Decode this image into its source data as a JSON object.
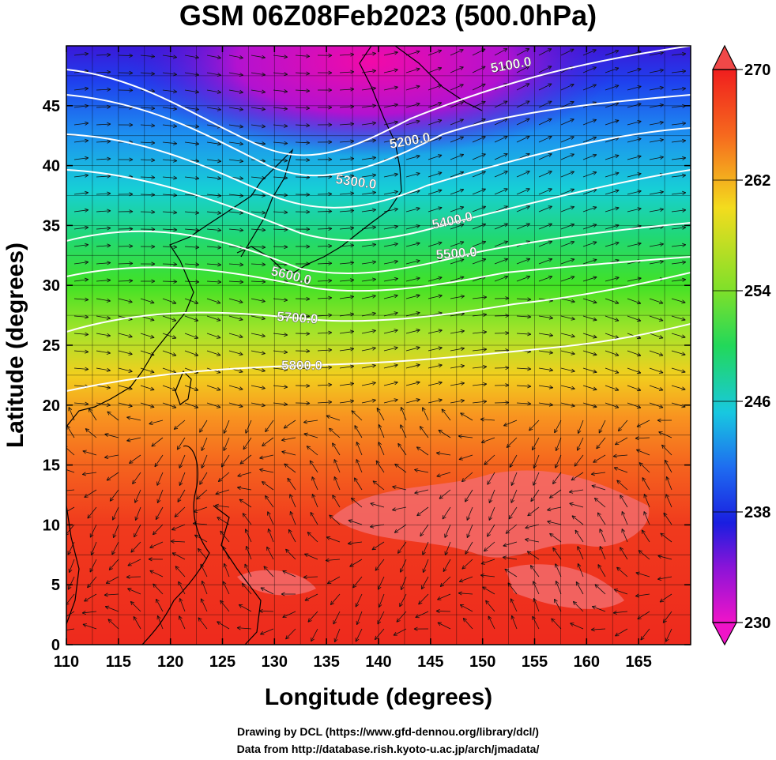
{
  "title": "GSM 06Z08Feb2023 (500.0hPa)",
  "xlabel": "Longitude (degrees)",
  "ylabel": "Latitude  (degrees)",
  "credits": [
    "Drawing by DCL (https://www.gfd-dennou.org/library/dcl/)",
    "Data from http://database.rish.kyoto-u.ac.jp/arch/jmadata/"
  ],
  "map_data": {
    "lon_range": [
      110,
      170
    ],
    "lat_range": [
      0,
      50
    ],
    "x_ticks": [
      "110",
      "115",
      "120",
      "125",
      "130",
      "135",
      "140",
      "145",
      "150",
      "155",
      "160",
      "165"
    ],
    "y_ticks": [
      "0",
      "5",
      "10",
      "15",
      "20",
      "25",
      "30",
      "35",
      "40",
      "45"
    ],
    "contour_labels": [
      "5100.0",
      "5200.0",
      "5300.0",
      "5400.0",
      "5500.0",
      "5600.0",
      "5700.0",
      "5800.0"
    ],
    "colorbar_ticks": [
      "230",
      "238",
      "246",
      "254",
      "262",
      "270"
    ],
    "colorbar_range": [
      230,
      270
    ],
    "fields": {
      "shading": "temperature (K)",
      "contours": "geopotential height (m)",
      "arrows": "wind streamlines"
    }
  },
  "colors": {
    "warm": "#f01e1e",
    "cold": "#e600c8",
    "contour": "#ffffff",
    "coast": "#000000"
  }
}
